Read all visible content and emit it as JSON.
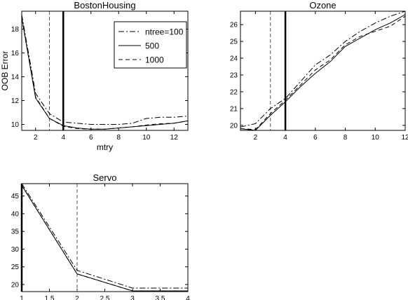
{
  "chart_data": [
    {
      "type": "line",
      "title": "BostonHousing",
      "xlabel": "mtry",
      "ylabel": "OOB Error",
      "xlim": [
        1,
        13
      ],
      "ylim": [
        9.5,
        19.5
      ],
      "xticks": [
        2,
        4,
        6,
        8,
        10,
        12
      ],
      "yticks": [
        10,
        12,
        14,
        16,
        18
      ],
      "vlines": [
        {
          "x": 3,
          "style": "dashed"
        },
        {
          "x": 4,
          "style": "solid-thick"
        }
      ],
      "legend": {
        "position": "top-right"
      },
      "x": [
        1,
        2,
        3,
        4,
        5,
        6,
        7,
        8,
        9,
        10,
        11,
        12,
        13
      ],
      "series": [
        {
          "name": "ntree=100",
          "dash": "dashdot",
          "values": [
            19.2,
            12.6,
            10.9,
            10.2,
            10.1,
            10.0,
            10.0,
            10.0,
            10.1,
            10.5,
            10.6,
            10.6,
            10.7
          ]
        },
        {
          "name": "500",
          "dash": "solid",
          "values": [
            19.0,
            12.2,
            10.5,
            9.9,
            9.7,
            9.6,
            9.6,
            9.7,
            9.8,
            9.9,
            10.0,
            10.1,
            10.3
          ]
        },
        {
          "name": "1000",
          "dash": "dashed",
          "values": [
            18.9,
            12.3,
            10.5,
            9.85,
            9.65,
            9.6,
            9.6,
            9.7,
            9.8,
            9.95,
            10.05,
            10.1,
            10.3
          ]
        }
      ]
    },
    {
      "type": "line",
      "title": "Ozone",
      "xlabel": "",
      "ylabel": "",
      "xlim": [
        1,
        12
      ],
      "ylim": [
        19.7,
        26.8
      ],
      "xticks": [
        2,
        4,
        6,
        8,
        10,
        12
      ],
      "yticks": [
        20,
        21,
        22,
        23,
        24,
        25,
        26
      ],
      "vlines": [
        {
          "x": 3,
          "style": "dashed"
        },
        {
          "x": 4,
          "style": "solid-thick"
        }
      ],
      "x": [
        1,
        2,
        3,
        4,
        5,
        6,
        7,
        8,
        9,
        10,
        11,
        12
      ],
      "series": [
        {
          "name": "ntree=100",
          "dash": "dashdot",
          "values": [
            19.9,
            20.1,
            21.0,
            21.6,
            22.6,
            23.6,
            24.2,
            25.0,
            25.6,
            26.1,
            26.5,
            26.8
          ]
        },
        {
          "name": "500",
          "dash": "solid",
          "values": [
            19.8,
            19.7,
            20.6,
            21.4,
            22.3,
            23.1,
            23.8,
            24.7,
            25.2,
            25.7,
            26.1,
            26.6
          ]
        },
        {
          "name": "1000",
          "dash": "dashed",
          "values": [
            19.8,
            19.75,
            20.7,
            21.5,
            22.4,
            23.3,
            23.9,
            24.8,
            25.3,
            25.6,
            25.9,
            26.5
          ]
        }
      ]
    },
    {
      "type": "line",
      "title": "Servo",
      "xlabel": "",
      "ylabel": "",
      "xlim": [
        1,
        4
      ],
      "ylim": [
        18,
        48.5
      ],
      "xticks": [
        1,
        1.5,
        2,
        2.5,
        3,
        3.5,
        4
      ],
      "yticks": [
        20,
        25,
        30,
        35,
        40,
        45
      ],
      "vlines": [
        {
          "x": 2,
          "style": "dashed"
        },
        {
          "x": 1,
          "style": "solid-thick"
        }
      ],
      "x": [
        1,
        2,
        3,
        4
      ],
      "series": [
        {
          "name": "ntree=100",
          "dash": "dashdot",
          "values": [
            48.5,
            24.0,
            19.0,
            19.0
          ]
        },
        {
          "name": "500",
          "dash": "solid",
          "values": [
            48.0,
            23.0,
            18.2,
            18.2
          ]
        },
        {
          "name": "1000",
          "dash": "dashed",
          "values": [
            48.0,
            23.0,
            18.2,
            18.2
          ]
        }
      ]
    }
  ]
}
